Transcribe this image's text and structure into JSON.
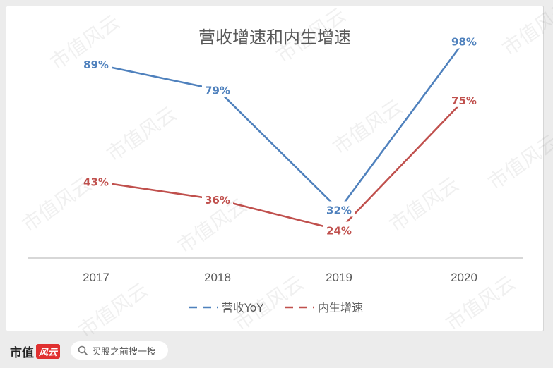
{
  "chart_data": {
    "type": "line",
    "title": "营收增速和内生增速",
    "categories": [
      "2017",
      "2018",
      "2019",
      "2020"
    ],
    "series": [
      {
        "name": "营收YoY",
        "values": [
          89,
          79,
          32,
          98
        ],
        "labels": [
          "89%",
          "79%",
          "32%",
          "98%"
        ],
        "color": "#4f81bd"
      },
      {
        "name": "内生增速",
        "values": [
          43,
          36,
          24,
          75
        ],
        "labels": [
          "43%",
          "36%",
          "24%",
          "75%"
        ],
        "color": "#c0504d"
      }
    ],
    "unit": "%",
    "grid": false,
    "legend": "bottom",
    "ylim": [
      0,
      115
    ]
  },
  "footer": {
    "logo_text": "市值",
    "logo_badge": "风云",
    "search_placeholder": "买股之前搜一搜"
  },
  "watermark": "市值风云",
  "colors": {
    "background": "#ececec",
    "panel": "#ffffff",
    "axis": "#bfbfbf"
  }
}
